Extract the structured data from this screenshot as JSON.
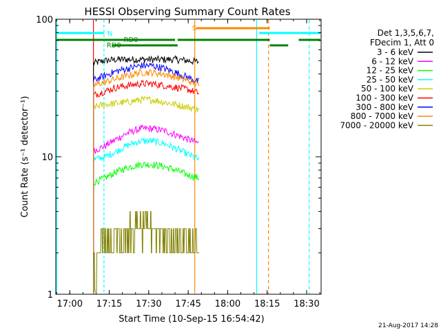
{
  "chart_data": {
    "type": "line",
    "title": "HESSI Observing Summary Count Rates",
    "xlabel": "Start Time (10-Sep-15 16:54:42)",
    "ylabel": "Count Rate (s⁻¹ detector⁻¹)",
    "yscale": "log",
    "ylim": [
      1,
      100
    ],
    "y_ticks": [
      "1",
      "10",
      "100"
    ],
    "x_ticks": [
      "17:00",
      "17:15",
      "17:30",
      "17:45",
      "18:00",
      "18:15",
      "18:30"
    ],
    "footer": "21-Aug-2017 14:28",
    "legend": {
      "header": [
        "Det 1,3,5,6,7,",
        "FDecim 1, Att 0"
      ],
      "entries": [
        {
          "label": "3 - 6 keV",
          "color": "#000000"
        },
        {
          "label": "6 - 12 keV",
          "color": "#ff00ff"
        },
        {
          "label": "12 - 25 keV",
          "color": "#00ff00"
        },
        {
          "label": "25 - 50 keV",
          "color": "#00ffff"
        },
        {
          "label": "50 - 100 keV",
          "color": "#cccc00"
        },
        {
          "label": "100 - 300 keV",
          "color": "#ff0000"
        },
        {
          "label": "300 - 800 keV",
          "color": "#0000ff"
        },
        {
          "label": "800 - 7000 keV",
          "color": "#ff8800"
        },
        {
          "label": "7000 - 20000 keV",
          "color": "#808000"
        }
      ]
    },
    "flags": [
      {
        "label": "N",
        "color": "#00ffff"
      },
      {
        "label": "RD0",
        "color": "#008000"
      },
      {
        "label": "RD0",
        "color": "#008000"
      },
      {
        "label": "S",
        "color": "#ff8800"
      }
    ],
    "series": [
      {
        "name": "3 - 6 keV",
        "color": "#000000",
        "start": "17:09",
        "end": "17:49",
        "values": [
          48,
          50,
          51,
          51,
          51,
          51,
          51,
          51,
          50,
          49
        ]
      },
      {
        "name": "6 - 12 keV",
        "color": "#ff00ff",
        "start": "17:09",
        "end": "17:49",
        "values": [
          11,
          12,
          13.5,
          15,
          16,
          16,
          15.5,
          14.5,
          13.5,
          12.5
        ]
      },
      {
        "name": "12 - 25 keV",
        "color": "#00ff00",
        "start": "17:09",
        "end": "17:49",
        "values": [
          6.5,
          7,
          7.8,
          8.4,
          8.8,
          8.8,
          8.5,
          8,
          7.4,
          7
        ]
      },
      {
        "name": "25 - 50 keV",
        "color": "#00ffff",
        "start": "17:09",
        "end": "17:49",
        "values": [
          9.5,
          10,
          11,
          12.2,
          13,
          13,
          12.5,
          11.5,
          10.5,
          9.5
        ]
      },
      {
        "name": "50 - 100 keV",
        "color": "#cccc00",
        "start": "17:09",
        "end": "17:49",
        "values": [
          23,
          24,
          24.5,
          25,
          26,
          26,
          25,
          24,
          23,
          22
        ]
      },
      {
        "name": "100 - 300 keV",
        "color": "#ff0000",
        "start": "17:09",
        "end": "17:49",
        "values": [
          28,
          30,
          32,
          33,
          34,
          34,
          33,
          32,
          31,
          29
        ]
      },
      {
        "name": "300 - 800 keV",
        "color": "#0000ff",
        "start": "17:09",
        "end": "17:49",
        "values": [
          36,
          39,
          42,
          44,
          46,
          46,
          44,
          41,
          38,
          35
        ]
      },
      {
        "name": "800 - 7000 keV",
        "color": "#ff8800",
        "start": "17:09",
        "end": "17:49",
        "values": [
          33,
          35,
          37,
          39,
          41,
          41,
          40,
          38,
          36,
          33
        ]
      },
      {
        "name": "7000 - 20000 keV",
        "color": "#808000",
        "start": "17:09",
        "end": "17:49",
        "values": [
          2,
          2.5,
          3,
          3.5,
          4,
          4,
          3.5,
          3,
          2.5,
          2
        ]
      }
    ]
  }
}
